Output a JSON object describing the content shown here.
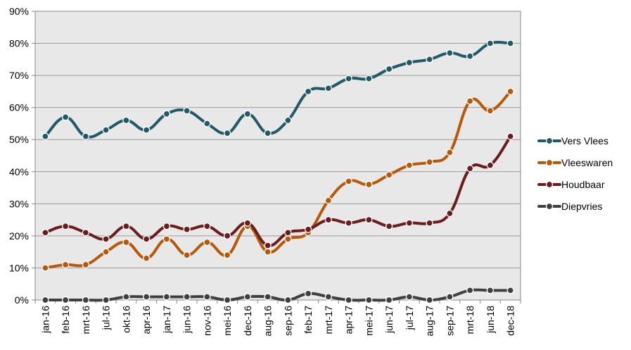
{
  "chart_data": {
    "type": "line",
    "title": "",
    "xlabel": "",
    "ylabel": "",
    "categories": [
      "jan-16",
      "feb-16",
      "mrt-16",
      "jul-16",
      "okt-16",
      "apr-16",
      "jan-17",
      "jun-16",
      "nov-16",
      "mei-16",
      "dec-16",
      "aug-16",
      "sep-16",
      "feb-17",
      "mrt-17",
      "apr-17",
      "mei-17",
      "jun-17",
      "jul-17",
      "aug-17",
      "sep-17",
      "mrt-18",
      "jun-18",
      "dec-18"
    ],
    "ylim": [
      0,
      90
    ],
    "yticks": [
      "0%",
      "10%",
      "20%",
      "30%",
      "40%",
      "50%",
      "60%",
      "70%",
      "80%",
      "90%"
    ],
    "grid": true,
    "legend_position": "right",
    "series": [
      {
        "name": "Vers Vlees",
        "color": "#215968",
        "values": [
          51,
          57,
          51,
          53,
          56,
          53,
          58,
          59,
          55,
          52,
          58,
          52,
          56,
          65,
          66,
          69,
          69,
          72,
          74,
          75,
          77,
          76,
          80,
          80
        ]
      },
      {
        "name": "Vleeswaren",
        "color": "#b8590a",
        "values": [
          10,
          11,
          11,
          15,
          18,
          13,
          19,
          14,
          18,
          14,
          23,
          15,
          19,
          21,
          31,
          37,
          36,
          39,
          42,
          43,
          46,
          62,
          59,
          65
        ]
      },
      {
        "name": "Houdbaar",
        "color": "#6b1c1c",
        "values": [
          21,
          23,
          21,
          19,
          23,
          19,
          23,
          22,
          23,
          20,
          24,
          17,
          21,
          22,
          25,
          24,
          25,
          23,
          24,
          24,
          27,
          41,
          42,
          51
        ]
      },
      {
        "name": "Diepvries",
        "color": "#3f3f3f",
        "values": [
          0,
          0,
          0,
          0,
          1,
          1,
          1,
          1,
          1,
          0,
          1,
          1,
          0,
          2,
          1,
          0,
          0,
          0,
          1,
          0,
          1,
          3,
          3,
          3
        ]
      }
    ]
  }
}
